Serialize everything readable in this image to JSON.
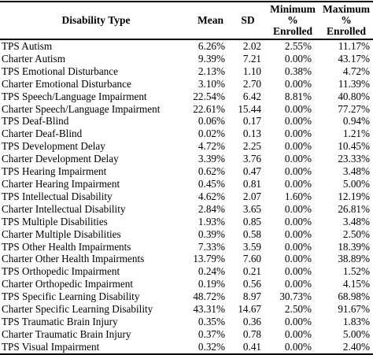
{
  "table": {
    "headers": {
      "type": "Disability Type",
      "mean": "Mean",
      "sd": "SD",
      "min": [
        "Minimum",
        "%",
        "Enrolled"
      ],
      "max": [
        "Maximum",
        "%",
        "Enrolled"
      ]
    },
    "rows": [
      {
        "type": "TPS Autism",
        "mean": "6.26%",
        "sd": "2.02",
        "min": "2.55%",
        "max": "11.17%"
      },
      {
        "type": "Charter Autism",
        "mean": "9.39%",
        "sd": "7.21",
        "min": "0.00%",
        "max": "43.17%"
      },
      {
        "type": "TPS Emotional Disturbance",
        "mean": "2.13%",
        "sd": "1.10",
        "min": "0.38%",
        "max": "4.72%"
      },
      {
        "type": "Charter Emotional Disturbance",
        "mean": "3.10%",
        "sd": "2.70",
        "min": "0.00%",
        "max": "11.39%"
      },
      {
        "type": "TPS Speech/Language Impairment",
        "mean": "22.54%",
        "sd": "6.42",
        "min": "8.81%",
        "max": "40.80%"
      },
      {
        "type": "Charter Speech/Language Impairment",
        "mean": "22.61%",
        "sd": "15.44",
        "min": "0.00%",
        "max": "77.27%"
      },
      {
        "type": "TPS Deaf-Blind",
        "mean": "0.06%",
        "sd": "0.17",
        "min": "0.00%",
        "max": "0.94%"
      },
      {
        "type": "Charter Deaf-Blind",
        "mean": "0.02%",
        "sd": "0.13",
        "min": "0.00%",
        "max": "1.21%"
      },
      {
        "type": "TPS Development Delay",
        "mean": "4.72%",
        "sd": "2.25",
        "min": "0.00%",
        "max": "10.45%"
      },
      {
        "type": "Charter Development Delay",
        "mean": "3.39%",
        "sd": "3.76",
        "min": "0.00%",
        "max": "23.33%"
      },
      {
        "type": "TPS Hearing Impairment",
        "mean": "0.62%",
        "sd": "0.47",
        "min": "0.00%",
        "max": "3.48%"
      },
      {
        "type": "Charter Hearing Impairment",
        "mean": "0.45%",
        "sd": "0.81",
        "min": "0.00%",
        "max": "5.00%"
      },
      {
        "type": "TPS Intellectual Disability",
        "mean": "4.62%",
        "sd": "2.07",
        "min": "1.60%",
        "max": "12.19%"
      },
      {
        "type": "Charter Intellectual Disability",
        "mean": "2.84%",
        "sd": "3.65",
        "min": "0.00%",
        "max": "26.81%"
      },
      {
        "type": "TPS Multiple Disabilities",
        "mean": "1.93%",
        "sd": "0.85",
        "min": "0.00%",
        "max": "3.48%"
      },
      {
        "type": "Charter Multiple Disabilities",
        "mean": "0.39%",
        "sd": "0.58",
        "min": "0.00%",
        "max": "2.50%"
      },
      {
        "type": "TPS Other Health Impairments",
        "mean": "7.33%",
        "sd": "3.59",
        "min": "0.00%",
        "max": "18.39%"
      },
      {
        "type": "Charter Other Health Impairments",
        "mean": "13.79%",
        "sd": "7.60",
        "min": "0.00%",
        "max": "38.89%"
      },
      {
        "type": "TPS Orthopedic Impairment",
        "mean": "0.24%",
        "sd": "0.21",
        "min": "0.00%",
        "max": "1.52%"
      },
      {
        "type": "Charter Orthopedic Impairment",
        "mean": "0.19%",
        "sd": "0.56",
        "min": "0.00%",
        "max": "4.15%"
      },
      {
        "type": "TPS Specific Learning Disability",
        "mean": "48.72%",
        "sd": "8.97",
        "min": "30.73%",
        "max": "68.98%"
      },
      {
        "type": "Charter Specific Learning Disability",
        "mean": "43.31%",
        "sd": "14.67",
        "min": "2.50%",
        "max": "91.67%"
      },
      {
        "type": "TPS Traumatic Brain Injury",
        "mean": "0.35%",
        "sd": "0.36",
        "min": "0.00%",
        "max": "1.83%"
      },
      {
        "type": "Charter Traumatic Brain Injury",
        "mean": "0.37%",
        "sd": "0.78",
        "min": "0.00%",
        "max": "5.00%"
      },
      {
        "type": "TPS Visual Impairment",
        "mean": "0.32%",
        "sd": "0.41",
        "min": "0.00%",
        "max": "2.40%"
      }
    ]
  }
}
